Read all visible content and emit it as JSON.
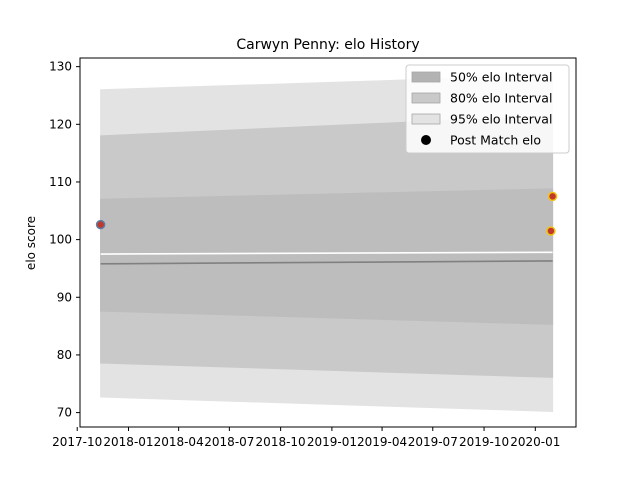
{
  "chart_data": {
    "type": "area",
    "title": "Carwyn Penny: elo History",
    "xlabel": "",
    "ylabel": "elo score",
    "xlim": [
      "2017-10-06",
      "2020-03-14"
    ],
    "ylim": [
      67.5,
      131.5
    ],
    "x_ticks": [
      "2017-10",
      "2018-01",
      "2018-04",
      "2018-07",
      "2018-10",
      "2019-01",
      "2019-04",
      "2019-07",
      "2019-10",
      "2020-01"
    ],
    "y_ticks": [
      70,
      80,
      90,
      100,
      110,
      120,
      130
    ],
    "grid": false,
    "legend_position": "top-right",
    "legend": [
      {
        "label": "50% elo Interval",
        "kind": "patch",
        "color": "#b3b3b3"
      },
      {
        "label": "80% elo Interval",
        "kind": "patch",
        "color": "#c9c9c9"
      },
      {
        "label": "95% elo Interval",
        "kind": "patch",
        "color": "#e3e3e3"
      },
      {
        "label": "Post Match elo",
        "kind": "marker",
        "color": "#000000"
      }
    ],
    "x": [
      "2017-11-12",
      "2020-02-01"
    ],
    "series": [
      {
        "name": "95% elo Interval",
        "color": "#e3e3e3",
        "lower": [
          72.7,
          70.2
        ],
        "upper": [
          126.0,
          128.5
        ]
      },
      {
        "name": "80% elo Interval",
        "color": "#c9c9c9",
        "lower": [
          78.6,
          76.1
        ],
        "upper": [
          118.0,
          121.5
        ]
      },
      {
        "name": "50% elo Interval",
        "color": "#bdbdbd",
        "lower": [
          87.6,
          85.3
        ],
        "upper": [
          107.0,
          108.8
        ]
      }
    ],
    "lines": [
      {
        "values": [
          95.8,
          96.3
        ],
        "color": "#808080"
      },
      {
        "values": [
          97.5,
          97.8
        ],
        "color": "#ffffff"
      }
    ],
    "points": [
      {
        "x": "2017-11-12",
        "y": 102.6,
        "fill": "#c0392b",
        "edge": "#5a7fa8"
      },
      {
        "x": "2020-01-29",
        "y": 101.5,
        "fill": "#c0392b",
        "edge": "#f1c40f"
      },
      {
        "x": "2020-02-01",
        "y": 107.5,
        "fill": "#c0392b",
        "edge": "#f1c40f"
      }
    ]
  }
}
